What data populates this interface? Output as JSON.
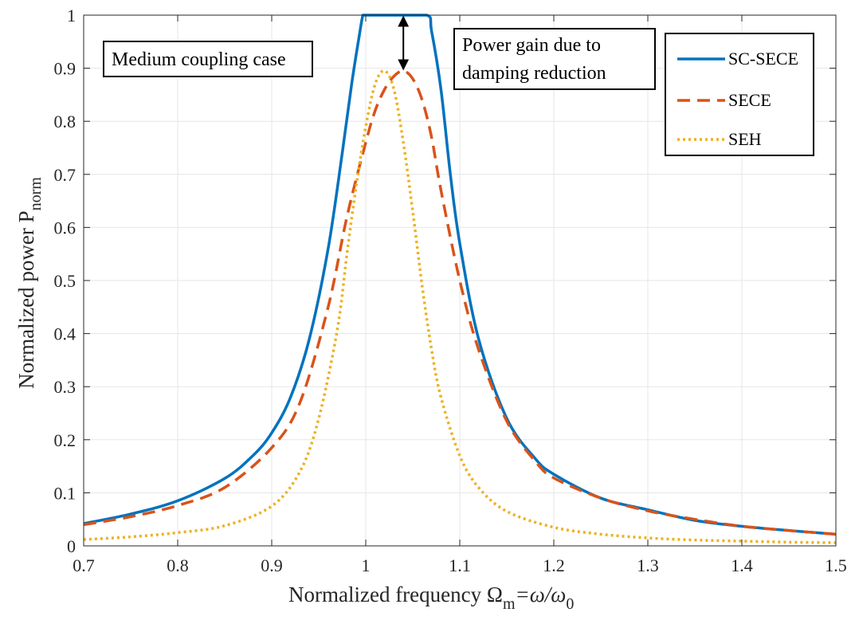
{
  "chart_data": {
    "type": "line",
    "title": "",
    "xlabel": {
      "main": "Normalized frequency Ω",
      "sub": "m",
      "rest": "=ω/ω",
      "sub2": "0"
    },
    "ylabel": {
      "main": "Normalized power P",
      "sub": "norm"
    },
    "xlim": [
      0.7,
      1.5
    ],
    "ylim": [
      0,
      1
    ],
    "xticks": [
      0.7,
      0.8,
      0.9,
      1,
      1.1,
      1.2,
      1.3,
      1.4,
      1.5
    ],
    "xtick_labels": [
      "0.7",
      "0.8",
      "0.9",
      "1",
      "1.1",
      "1.2",
      "1.3",
      "1.4",
      "1.5"
    ],
    "yticks": [
      0,
      0.1,
      0.2,
      0.3,
      0.4,
      0.5,
      0.6,
      0.7,
      0.8,
      0.9,
      1
    ],
    "ytick_labels": [
      "0",
      "0.1",
      "0.2",
      "0.3",
      "0.4",
      "0.5",
      "0.6",
      "0.7",
      "0.8",
      "0.9",
      "1"
    ],
    "grid": true,
    "legend_position": "top-right",
    "series": [
      {
        "name": "SC-SECE",
        "color": "#0072BD",
        "style": "solid",
        "points": [
          [
            0.7,
            0.042
          ],
          [
            0.75,
            0.06
          ],
          [
            0.8,
            0.085
          ],
          [
            0.85,
            0.127
          ],
          [
            0.88,
            0.17
          ],
          [
            0.9,
            0.213
          ],
          [
            0.92,
            0.28
          ],
          [
            0.94,
            0.39
          ],
          [
            0.96,
            0.56
          ],
          [
            0.975,
            0.74
          ],
          [
            0.985,
            0.87
          ],
          [
            0.993,
            0.96
          ],
          [
            0.997,
            1.0
          ],
          [
            1.0,
            1.0
          ],
          [
            1.03,
            1.0
          ],
          [
            1.065,
            1.0
          ],
          [
            1.07,
            0.97
          ],
          [
            1.08,
            0.86
          ],
          [
            1.09,
            0.7
          ],
          [
            1.1,
            0.57
          ],
          [
            1.12,
            0.39
          ],
          [
            1.15,
            0.24
          ],
          [
            1.18,
            0.165
          ],
          [
            1.2,
            0.135
          ],
          [
            1.25,
            0.09
          ],
          [
            1.3,
            0.068
          ],
          [
            1.35,
            0.048
          ],
          [
            1.4,
            0.037
          ],
          [
            1.45,
            0.029
          ],
          [
            1.5,
            0.022
          ]
        ]
      },
      {
        "name": "SECE",
        "color": "#D95319",
        "style": "dashed",
        "points": [
          [
            0.7,
            0.04
          ],
          [
            0.75,
            0.055
          ],
          [
            0.8,
            0.076
          ],
          [
            0.85,
            0.11
          ],
          [
            0.9,
            0.185
          ],
          [
            0.93,
            0.27
          ],
          [
            0.96,
            0.45
          ],
          [
            0.98,
            0.62
          ],
          [
            1.0,
            0.76
          ],
          [
            1.01,
            0.82
          ],
          [
            1.02,
            0.86
          ],
          [
            1.03,
            0.885
          ],
          [
            1.04,
            0.895
          ],
          [
            1.05,
            0.88
          ],
          [
            1.06,
            0.84
          ],
          [
            1.07,
            0.77
          ],
          [
            1.08,
            0.67
          ],
          [
            1.1,
            0.5
          ],
          [
            1.12,
            0.37
          ],
          [
            1.15,
            0.235
          ],
          [
            1.18,
            0.16
          ],
          [
            1.2,
            0.128
          ],
          [
            1.25,
            0.09
          ],
          [
            1.3,
            0.066
          ],
          [
            1.35,
            0.05
          ],
          [
            1.4,
            0.037
          ],
          [
            1.45,
            0.029
          ],
          [
            1.5,
            0.022
          ]
        ]
      },
      {
        "name": "SEH",
        "color": "#EDB120",
        "style": "dotted",
        "points": [
          [
            0.7,
            0.012
          ],
          [
            0.75,
            0.017
          ],
          [
            0.8,
            0.025
          ],
          [
            0.85,
            0.038
          ],
          [
            0.9,
            0.075
          ],
          [
            0.93,
            0.14
          ],
          [
            0.95,
            0.24
          ],
          [
            0.97,
            0.41
          ],
          [
            0.98,
            0.55
          ],
          [
            0.99,
            0.68
          ],
          [
            1.0,
            0.79
          ],
          [
            1.01,
            0.87
          ],
          [
            1.02,
            0.895
          ],
          [
            1.03,
            0.86
          ],
          [
            1.04,
            0.76
          ],
          [
            1.05,
            0.63
          ],
          [
            1.06,
            0.49
          ],
          [
            1.07,
            0.37
          ],
          [
            1.08,
            0.28
          ],
          [
            1.1,
            0.17
          ],
          [
            1.12,
            0.11
          ],
          [
            1.15,
            0.065
          ],
          [
            1.2,
            0.035
          ],
          [
            1.25,
            0.022
          ],
          [
            1.3,
            0.015
          ],
          [
            1.35,
            0.011
          ],
          [
            1.4,
            0.009
          ],
          [
            1.45,
            0.007
          ],
          [
            1.5,
            0.006
          ]
        ]
      }
    ],
    "annotations": [
      {
        "id": "medium-coupling",
        "lines": [
          "Medium coupling case"
        ]
      },
      {
        "id": "power-gain",
        "lines": [
          "Power gain due to",
          "damping reduction"
        ]
      }
    ],
    "arrow": {
      "x": 1.04,
      "y_from": 1.0,
      "y_to": 0.895
    }
  }
}
